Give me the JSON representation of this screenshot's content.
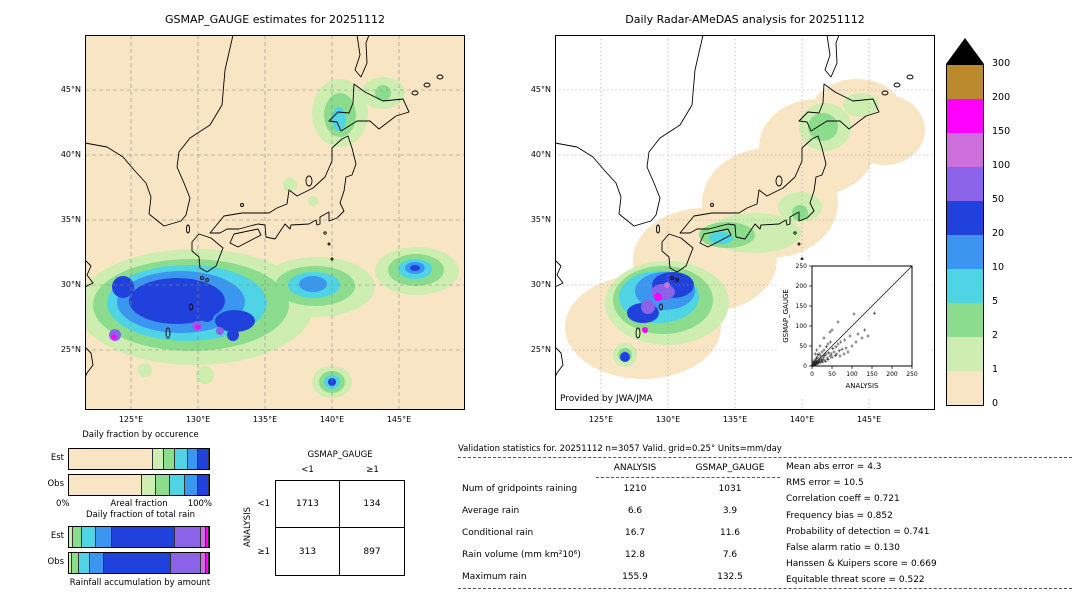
{
  "chart_data": {
    "left_map": {
      "type": "heatmap",
      "title": "GSMAP_GAUGE estimates for 20251112",
      "lat_ticks": [
        "45°N",
        "40°N",
        "35°N",
        "30°N",
        "25°N"
      ],
      "lon_ticks": [
        "125°E",
        "130°E",
        "135°E",
        "140°E",
        "145°E"
      ]
    },
    "right_map": {
      "type": "heatmap",
      "title": "Daily Radar-AMeDAS analysis for 20251112",
      "lat_ticks": [
        "45°N",
        "40°N",
        "35°N",
        "30°N",
        "25°N"
      ],
      "lon_ticks": [
        "125°E",
        "130°E",
        "135°E",
        "140°E",
        "145°E"
      ],
      "credit": "Provided by JWA/JMA"
    },
    "colorbar": {
      "units": "mm/day",
      "levels_bottom_to_top": [
        "0",
        "1",
        "2",
        "5",
        "10",
        "20",
        "50",
        "100",
        "150",
        "200",
        "300"
      ],
      "colors_bottom_to_top": [
        "#f8e5c4",
        "#cdeeb0",
        "#8bdc8c",
        "#4fd4e6",
        "#3b96f0",
        "#2141dd",
        "#8a63e8",
        "#cf6fdd",
        "#ff00ff",
        "#bc8a2e"
      ],
      "overflow_color": "#000000"
    },
    "occurrence_bars": {
      "type": "bar",
      "title": "Daily fraction by occurence",
      "xlabel": "Areal fraction",
      "x_min_label": "0%",
      "x_max_label": "100%",
      "rows": [
        {
          "label": "Est",
          "fractions": [
            60,
            8,
            8,
            9,
            7,
            8
          ]
        },
        {
          "label": "Obs",
          "fractions": [
            52,
            10,
            10,
            11,
            9,
            8
          ]
        }
      ]
    },
    "totalrain_bars": {
      "type": "bar",
      "title": "Daily fraction of total rain",
      "xlabel": "Rainfall accumulation by amount",
      "rows": [
        {
          "label": "Est",
          "fractions": [
            0,
            3,
            6,
            10,
            12,
            45,
            18,
            4,
            2
          ]
        },
        {
          "label": "Obs",
          "fractions": [
            0,
            2,
            5,
            8,
            10,
            48,
            21,
            4,
            2
          ]
        }
      ]
    },
    "contingency": {
      "type": "table",
      "col_group": "GSMAP_GAUGE",
      "row_group": "ANALYSIS",
      "col_labels": [
        "<1",
        "≥1"
      ],
      "row_labels": [
        "<1",
        "≥1"
      ],
      "values": [
        [
          "1713",
          "134"
        ],
        [
          "313",
          "897"
        ]
      ]
    },
    "validation": {
      "type": "table",
      "header": "Validation statistics for. 20251112  n=3057 Valid. grid=0.25° Units=mm/day",
      "columns": [
        "ANALYSIS",
        "GSMAP_GAUGE"
      ],
      "rows": [
        {
          "label": "Num of gridpoints raining",
          "analysis": "1210",
          "gsmap_gauge": "1031"
        },
        {
          "label": "Average rain",
          "analysis": "6.6",
          "gsmap_gauge": "3.9"
        },
        {
          "label": "Conditional rain",
          "analysis": "16.7",
          "gsmap_gauge": "11.6"
        },
        {
          "label": "Rain volume (mm km²10⁶)",
          "analysis": "12.8",
          "gsmap_gauge": "7.6"
        },
        {
          "label": "Maximum rain",
          "analysis": "155.9",
          "gsmap_gauge": "132.5"
        }
      ]
    },
    "scores": [
      {
        "label": "Mean abs error",
        "value": "4.3"
      },
      {
        "label": "RMS error",
        "value": "10.5"
      },
      {
        "label": "Correlation coeff",
        "value": "0.721"
      },
      {
        "label": "Frequency bias",
        "value": "0.852"
      },
      {
        "label": "Probability of detection",
        "value": "0.741"
      },
      {
        "label": "False alarm ratio",
        "value": "0.130"
      },
      {
        "label": "Hanssen & Kuipers score",
        "value": "0.669"
      },
      {
        "label": "Equitable threat score",
        "value": "0.522"
      }
    ],
    "inset_scatter": {
      "type": "scatter",
      "xlabel": "ANALYSIS",
      "ylabel": "GSMAP_GAUGE",
      "xlim": [
        0,
        250
      ],
      "ylim": [
        0,
        250
      ],
      "ticks": [
        0,
        50,
        100,
        150,
        200,
        250
      ],
      "points": [
        [
          1,
          2
        ],
        [
          2,
          1
        ],
        [
          3,
          4
        ],
        [
          3,
          8
        ],
        [
          4,
          2
        ],
        [
          5,
          6
        ],
        [
          5,
          12
        ],
        [
          6,
          3
        ],
        [
          7,
          9
        ],
        [
          8,
          5
        ],
        [
          8,
          15
        ],
        [
          8,
          30
        ],
        [
          9,
          7
        ],
        [
          10,
          4
        ],
        [
          10,
          12
        ],
        [
          11,
          18
        ],
        [
          12,
          8
        ],
        [
          12,
          40
        ],
        [
          13,
          22
        ],
        [
          14,
          6
        ],
        [
          15,
          11
        ],
        [
          15,
          28
        ],
        [
          16,
          9
        ],
        [
          18,
          14
        ],
        [
          18,
          30
        ],
        [
          20,
          8
        ],
        [
          20,
          18
        ],
        [
          20,
          50
        ],
        [
          22,
          25
        ],
        [
          23,
          12
        ],
        [
          25,
          16
        ],
        [
          25,
          35
        ],
        [
          27,
          10
        ],
        [
          28,
          22
        ],
        [
          30,
          15
        ],
        [
          30,
          40
        ],
        [
          30,
          70
        ],
        [
          32,
          26
        ],
        [
          34,
          12
        ],
        [
          35,
          30
        ],
        [
          36,
          48
        ],
        [
          38,
          20
        ],
        [
          40,
          16
        ],
        [
          40,
          55
        ],
        [
          42,
          33
        ],
        [
          45,
          25
        ],
        [
          45,
          85
        ],
        [
          46,
          60
        ],
        [
          48,
          30
        ],
        [
          50,
          22
        ],
        [
          50,
          90
        ],
        [
          52,
          44
        ],
        [
          55,
          35
        ],
        [
          58,
          26
        ],
        [
          60,
          48
        ],
        [
          62,
          30
        ],
        [
          65,
          55
        ],
        [
          65,
          110
        ],
        [
          68,
          38
        ],
        [
          70,
          25
        ],
        [
          72,
          60
        ],
        [
          75,
          42
        ],
        [
          80,
          30
        ],
        [
          82,
          65
        ],
        [
          85,
          45
        ],
        [
          90,
          35
        ],
        [
          95,
          75
        ],
        [
          100,
          50
        ],
        [
          105,
          130
        ],
        [
          110,
          60
        ],
        [
          115,
          80
        ],
        [
          125,
          70
        ],
        [
          132,
          90
        ],
        [
          140,
          75
        ],
        [
          156,
          132
        ]
      ]
    }
  }
}
